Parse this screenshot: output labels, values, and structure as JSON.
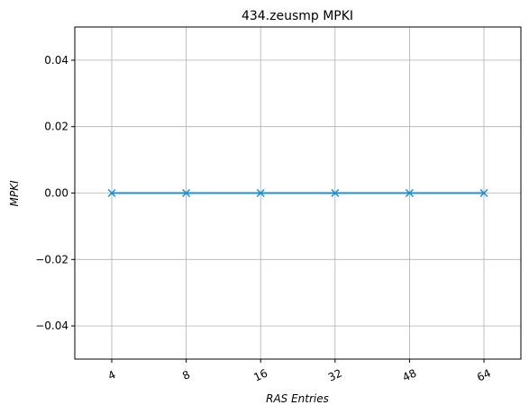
{
  "chart_data": {
    "type": "line",
    "title": "434.zeusmp MPKI",
    "xlabel": "RAS Entries",
    "ylabel": "MPKI",
    "categories": [
      "4",
      "8",
      "16",
      "32",
      "48",
      "64"
    ],
    "series": [
      {
        "values": [
          0.0,
          0.0,
          0.0,
          0.0,
          0.0,
          0.0
        ],
        "color": "#1f8fcf",
        "marker": "x"
      }
    ],
    "ylim": [
      -0.05,
      0.05
    ],
    "yticks": [
      -0.04,
      -0.02,
      0.0,
      0.02,
      0.04
    ],
    "ytick_labels": [
      "−0.04",
      "−0.02",
      "0.00",
      "0.02",
      "0.04"
    ],
    "grid": true,
    "legend": "none"
  }
}
